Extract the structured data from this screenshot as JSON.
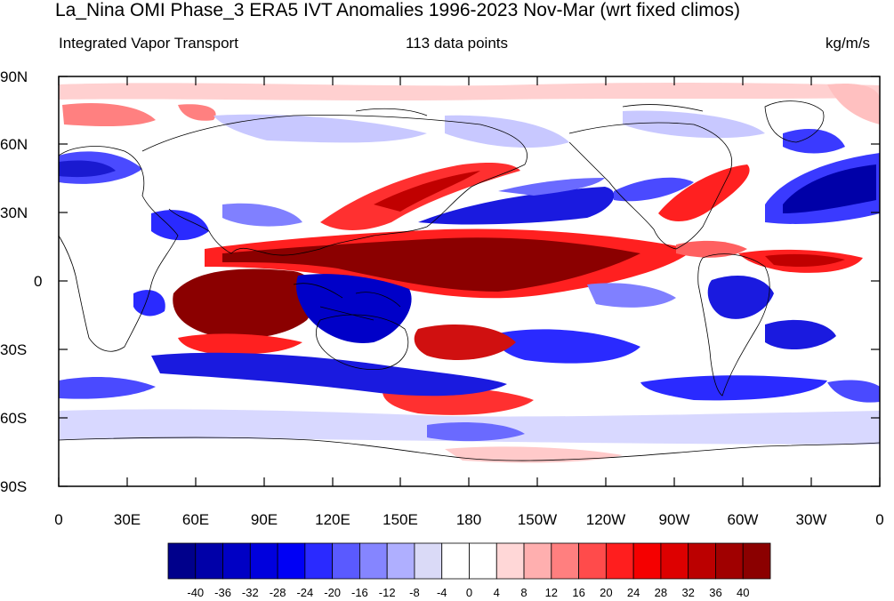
{
  "title": "La_Nina OMI Phase_3 ERA5 IVT Anomalies 1996-2023 Nov-Mar (wrt fixed climos)",
  "subtitle_left": "Integrated Vapor Transport",
  "subtitle_center": "113 data points",
  "subtitle_right": "kg/m/s",
  "lat_labels": [
    "90N",
    "60N",
    "30N",
    "0",
    "30S",
    "60S",
    "90S"
  ],
  "lon_labels": [
    "0",
    "30E",
    "60E",
    "90E",
    "120E",
    "150E",
    "180",
    "150W",
    "120W",
    "90W",
    "60W",
    "30W",
    "0"
  ],
  "colorbar": {
    "labels": [
      "-40",
      "-36",
      "-32",
      "-28",
      "-24",
      "-20",
      "-16",
      "-12",
      "-8",
      "-4",
      "0",
      "4",
      "8",
      "12",
      "16",
      "20",
      "24",
      "28",
      "32",
      "36",
      "40"
    ],
    "colors": [
      "#00008b",
      "#0000a8",
      "#0000c4",
      "#0000dd",
      "#0000f5",
      "#2a2aff",
      "#5a5aff",
      "#8585ff",
      "#afafff",
      "#dadaf7",
      "#ffffff",
      "#ffffff",
      "#ffd7d7",
      "#ffafaf",
      "#ff7f7f",
      "#ff4b4b",
      "#ff1e1e",
      "#f50000",
      "#dd0000",
      "#bb0000",
      "#a00000",
      "#8b0000"
    ]
  },
  "colors": {
    "strong_positive": "#8b0000",
    "positive": "#ff2020",
    "weak_positive": "#ffb0b0",
    "strong_negative": "#0000c8",
    "negative": "#3a3aff",
    "weak_negative": "#b0b0ff"
  }
}
